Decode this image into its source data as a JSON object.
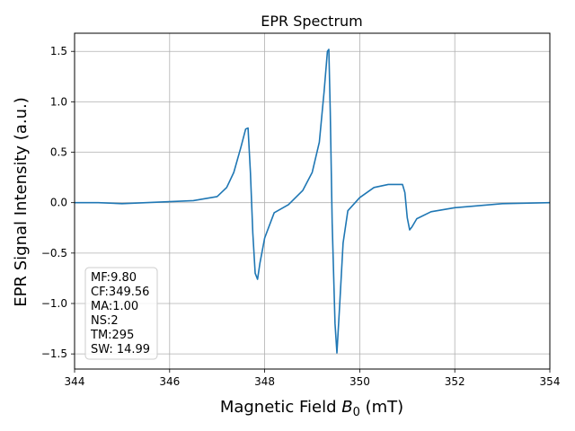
{
  "chart_data": {
    "type": "line",
    "title": "EPR Spectrum",
    "xlabel": {
      "main": "Magnetic Field ",
      "symbol": "B",
      "subscript": "0",
      "unit": " (mT)"
    },
    "ylabel": "EPR Signal Intensity (a.u.)",
    "xlim": [
      344,
      354
    ],
    "ylim": [
      -1.65,
      1.68
    ],
    "x_ticks": [
      344,
      346,
      348,
      350,
      352,
      354
    ],
    "y_ticks": [
      -1.5,
      -1.0,
      -0.5,
      0.0,
      0.5,
      1.0,
      1.5
    ],
    "y_tick_labels": [
      "−1.5",
      "−1.0",
      "−0.5",
      "0.0",
      "0.5",
      "1.0",
      "1.5"
    ],
    "grid": true,
    "line_color": "#1f77b4",
    "info_box": {
      "position": "bottom-left",
      "lines": [
        "MF:9.80",
        "CF:349.56",
        "MA:1.00",
        "NS:2",
        "TM:295",
        "SW: 14.99"
      ]
    },
    "series": [
      {
        "x": [
          344.0,
          344.5,
          345.0,
          345.5,
          346.0,
          346.5,
          347.0,
          347.2,
          347.35,
          347.5,
          347.6,
          347.65,
          347.7,
          347.75,
          347.8,
          347.85,
          347.9,
          348.0,
          348.2,
          348.5,
          348.8,
          349.0,
          349.15,
          349.25,
          349.32,
          349.35,
          349.38,
          349.42,
          349.48,
          349.52,
          349.58,
          349.65,
          349.75,
          350.0,
          350.3,
          350.6,
          350.9,
          350.95,
          351.0,
          351.05,
          351.1,
          351.2,
          351.5,
          352.0,
          353.0,
          354.0
        ],
        "y": [
          0.0,
          0.0,
          -0.01,
          0.0,
          0.01,
          0.02,
          0.06,
          0.15,
          0.3,
          0.55,
          0.73,
          0.74,
          0.3,
          -0.3,
          -0.7,
          -0.76,
          -0.6,
          -0.35,
          -0.1,
          -0.02,
          0.12,
          0.3,
          0.6,
          1.1,
          1.5,
          1.52,
          0.9,
          -0.2,
          -1.2,
          -1.49,
          -1.0,
          -0.4,
          -0.08,
          0.05,
          0.15,
          0.18,
          0.18,
          0.1,
          -0.15,
          -0.27,
          -0.24,
          -0.16,
          -0.09,
          -0.05,
          -0.01,
          0.0
        ]
      }
    ]
  }
}
